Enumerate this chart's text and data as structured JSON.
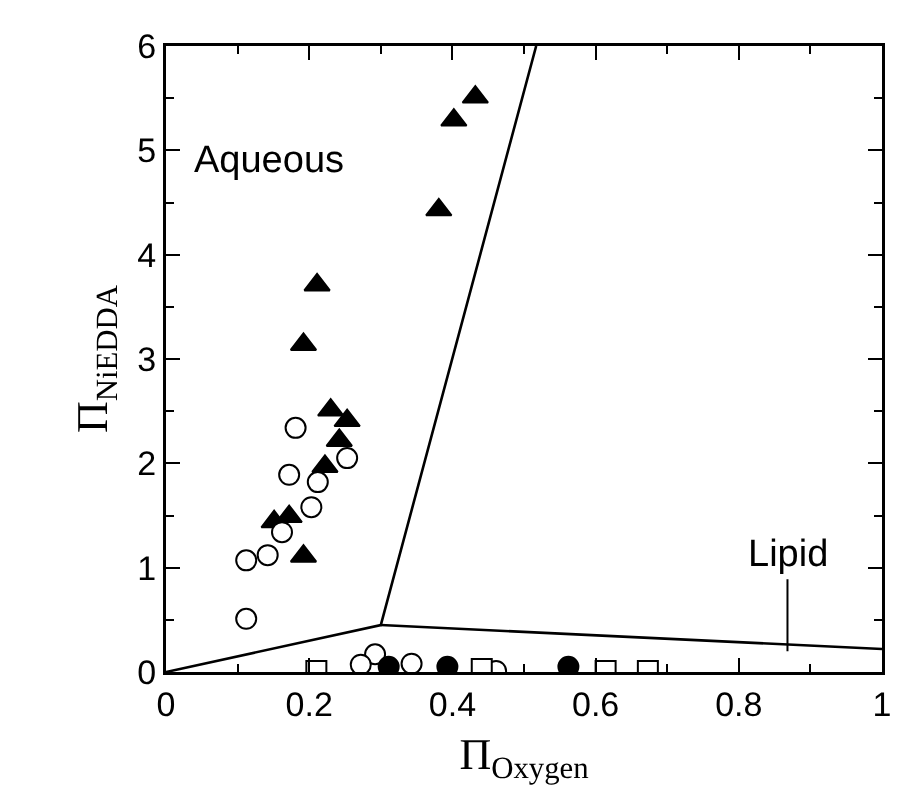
{
  "chart_data": {
    "type": "scatter",
    "xlabel": "Π$_{Oxygen}$",
    "ylabel": "Π$_{NiEDDA}$",
    "xlim": [
      0,
      1
    ],
    "xticks": [
      0,
      0.2,
      0.4,
      0.6,
      0.8,
      1
    ],
    "ylim": [
      0,
      6
    ],
    "yticks": [
      0,
      1,
      2,
      3,
      4,
      5,
      6
    ],
    "grid": false,
    "annotations": [
      "Aqueous",
      {
        "text": "Lipid",
        "x": 0.868,
        "y": 0.2
      }
    ],
    "series": [
      {
        "marker": "triangle",
        "color": "#000000",
        "x": [
          0.432,
          0.402,
          0.381,
          0.211,
          0.192,
          0.23,
          0.253,
          0.242,
          0.222,
          0.151,
          0.172,
          0.192
        ],
        "values": [
          5.51,
          5.29,
          4.43,
          3.71,
          3.14,
          2.51,
          2.41,
          2.22,
          1.97,
          1.44,
          1.49,
          1.11
        ]
      },
      {
        "marker": "circle",
        "color": "#ffffff",
        "x": [
          0.181,
          0.253,
          0.172,
          0.212,
          0.203,
          0.162,
          0.142,
          0.112,
          0.112,
          0.292,
          0.272,
          0.343,
          0.461
        ],
        "values": [
          2.34,
          2.05,
          1.89,
          1.82,
          1.58,
          1.34,
          1.12,
          1.07,
          0.51,
          0.17,
          0.07,
          0.08,
          0.01
        ]
      },
      {
        "marker": "circle",
        "color": "#000000",
        "x": [
          0.311,
          0.393,
          0.562
        ],
        "values": [
          0.05,
          0.05,
          0.05
        ]
      },
      {
        "marker": "square",
        "color": "#ffffff",
        "x": [
          0.21,
          0.441,
          0.614,
          0.673
        ],
        "values": [
          0.01,
          0.03,
          0.01,
          0.01
        ]
      },
      {
        "type": "line",
        "marker": "none",
        "color": "#000000",
        "x": [
          0,
          0.3,
          0.517
        ],
        "values": [
          0,
          0.45,
          6
        ]
      },
      {
        "type": "line",
        "marker": "none",
        "color": "#000000",
        "x": [
          0.3,
          1
        ],
        "values": [
          0.45,
          0.22
        ]
      }
    ]
  }
}
